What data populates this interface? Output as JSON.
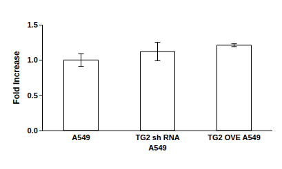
{
  "chart_data": {
    "type": "bar",
    "categories": [
      "A549",
      "TG2 sh RNA A549",
      "TG2 OVE A549"
    ],
    "values": [
      1.0,
      1.12,
      1.21
    ],
    "errors": [
      0.09,
      0.13,
      0.02
    ],
    "color": "#ffffff",
    "y_label": "Fold Increase",
    "ylim": [
      0,
      1.5
    ],
    "yticks": [
      {
        "value": 0,
        "label": "0.0"
      },
      {
        "value": 0.5,
        "label": "0.5"
      },
      {
        "value": 1,
        "label": "1.0"
      },
      {
        "value": 1.5,
        "label": "1.5"
      }
    ],
    "grid": false
  }
}
